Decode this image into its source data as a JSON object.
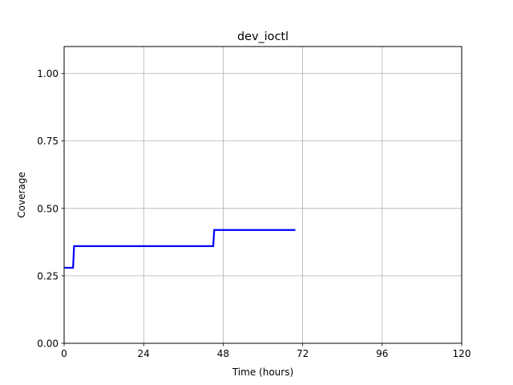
{
  "chart_data": {
    "type": "line",
    "title": "dev_ioctl",
    "xlabel": "Time (hours)",
    "ylabel": "Coverage",
    "xlim": [
      0,
      120
    ],
    "ylim": [
      0,
      1.1
    ],
    "xticks": [
      0,
      24,
      48,
      72,
      96,
      120
    ],
    "xtick_labels": [
      "0",
      "24",
      "48",
      "72",
      "96",
      "120"
    ],
    "yticks": [
      0,
      0.25,
      0.5,
      0.75,
      1.0
    ],
    "ytick_labels": [
      "0.00",
      "0.25",
      "0.50",
      "0.75",
      "1.00"
    ],
    "grid": true,
    "series": [
      {
        "color": "#0000ff",
        "step": true,
        "x": [
          0,
          2.7,
          3.0,
          45.0,
          45.3,
          69.8
        ],
        "y": [
          0.28,
          0.28,
          0.36,
          0.36,
          0.42,
          0.42
        ]
      }
    ]
  }
}
